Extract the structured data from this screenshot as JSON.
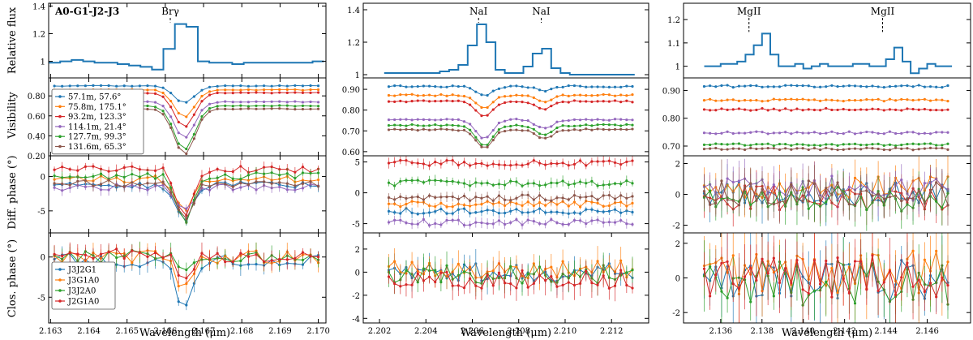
{
  "figure": {
    "ylabels": [
      "Relative flux",
      "Visibility",
      "Diff. phase (°)",
      "Clos. phase (°)"
    ],
    "xlabel": "Wavelength (μm)"
  },
  "colors": {
    "flux": "#1f77b4",
    "baselines": [
      "#1f77b4",
      "#ff7f0e",
      "#d62728",
      "#9467bd",
      "#2ca02c",
      "#8c564b"
    ],
    "triangles": [
      "#1f77b4",
      "#ff7f0e",
      "#2ca02c",
      "#d62728"
    ]
  },
  "chart_data": [
    {
      "type": "line",
      "panel": "flux",
      "column": 1,
      "title": "A0-G1-J2-J3",
      "ylim": [
        0.88,
        1.42
      ],
      "yticks": [
        1.0,
        1.2,
        1.4
      ],
      "xlim": [
        2.16295,
        2.1702
      ],
      "lines": [
        {
          "label": "Brγ",
          "x": 2.16613
        }
      ],
      "x": [
        2.1631,
        2.1634,
        2.1637,
        2.164,
        2.1643,
        2.1646,
        2.1649,
        2.1652,
        2.1655,
        2.1658,
        2.1661,
        2.1664,
        2.1667,
        2.167,
        2.1673,
        2.1676,
        2.1679,
        2.1682,
        2.1685,
        2.1688,
        2.1691,
        2.1694,
        2.1697,
        2.17
      ],
      "values": [
        0.99,
        1.0,
        1.01,
        1.0,
        0.99,
        0.99,
        0.98,
        0.97,
        0.96,
        0.94,
        1.09,
        1.27,
        1.25,
        1.0,
        0.99,
        0.99,
        0.98,
        0.99,
        0.99,
        0.99,
        0.99,
        0.99,
        0.99,
        1.0
      ]
    },
    {
      "type": "line",
      "panel": "flux",
      "column": 2,
      "ylim": [
        0.98,
        1.44
      ],
      "yticks": [
        1.0,
        1.2,
        1.4
      ],
      "xlim": [
        2.2013,
        2.2136
      ],
      "lines": [
        {
          "label": "NaI",
          "x": 2.20627
        },
        {
          "label": "NaI",
          "x": 2.20897
        }
      ],
      "x": [
        2.2024,
        2.2028,
        2.2032,
        2.2036,
        2.204,
        2.2044,
        2.2048,
        2.2052,
        2.2056,
        2.206,
        2.2064,
        2.2068,
        2.2072,
        2.2076,
        2.208,
        2.2084,
        2.2088,
        2.2092,
        2.2096,
        2.21,
        2.2104,
        2.2108,
        2.2112,
        2.2116,
        2.212,
        2.2124,
        2.2128
      ],
      "values": [
        1.01,
        1.01,
        1.01,
        1.01,
        1.01,
        1.01,
        1.02,
        1.03,
        1.06,
        1.18,
        1.31,
        1.2,
        1.03,
        1.01,
        1.01,
        1.05,
        1.13,
        1.16,
        1.04,
        1.01,
        1.0,
        1.0,
        1.0,
        1.0,
        1.0,
        1.0,
        1.0
      ]
    },
    {
      "type": "line",
      "panel": "flux",
      "column": 3,
      "ylim": [
        0.95,
        1.27
      ],
      "yticks": [
        1.0,
        1.1,
        1.2
      ],
      "xlim": [
        2.1342,
        2.1481
      ],
      "lines": [
        {
          "label": "MgII",
          "x": 2.13737
        },
        {
          "label": "MgII",
          "x": 2.14384
        }
      ],
      "x": [
        2.1354,
        2.1358,
        2.1362,
        2.1366,
        2.137,
        2.1374,
        2.1378,
        2.1382,
        2.1386,
        2.139,
        2.1394,
        2.1398,
        2.1402,
        2.1406,
        2.141,
        2.1414,
        2.1418,
        2.1422,
        2.1426,
        2.143,
        2.1434,
        2.1438,
        2.1442,
        2.1446,
        2.145,
        2.1454,
        2.1458,
        2.1462,
        2.1466,
        2.147
      ],
      "values": [
        1.0,
        1.0,
        1.01,
        1.01,
        1.02,
        1.05,
        1.09,
        1.14,
        1.05,
        1.0,
        1.0,
        1.01,
        0.99,
        1.0,
        1.01,
        1.0,
        1.0,
        1.0,
        1.01,
        1.01,
        1.0,
        1.0,
        1.03,
        1.08,
        1.02,
        0.97,
        0.99,
        1.01,
        1.0,
        1.0
      ]
    },
    {
      "type": "line",
      "panel": "visibility",
      "column": 1,
      "ylim": [
        0.2,
        0.98
      ],
      "yticks": [
        0.2,
        0.4,
        0.6,
        0.8
      ],
      "yticklabels": [
        "0.20",
        "0.40",
        "0.60",
        "0.80"
      ],
      "xlim": [
        2.16295,
        2.1702
      ],
      "legend": [
        "57.1m, 57.6°",
        "75.8m, 175.1°",
        "93.2m, 123.3°",
        "114.1m, 21.4°",
        "127.7m, 99.3°",
        "131.6m, 65.3°"
      ],
      "legend_location": "left",
      "series": [
        {
          "name": "57.1m, 57.6°",
          "x0": 2.1631,
          "x1": 2.17,
          "base": 0.9,
          "dip": 0.17,
          "center": 2.1665,
          "width": 0.00038
        },
        {
          "name": "75.8m, 175.1°",
          "x0": 2.1631,
          "x1": 2.17,
          "base": 0.86,
          "dip": 0.27,
          "center": 2.1665,
          "width": 0.00038
        },
        {
          "name": "93.2m, 123.3°",
          "x0": 2.1631,
          "x1": 2.17,
          "base": 0.83,
          "dip": 0.34,
          "center": 2.1665,
          "width": 0.00038
        },
        {
          "name": "114.1m, 21.4°",
          "x0": 2.1631,
          "x1": 2.17,
          "base": 0.74,
          "dip": 0.36,
          "center": 2.1665,
          "width": 0.00038
        },
        {
          "name": "127.7m, 99.3°",
          "x0": 2.1631,
          "x1": 2.17,
          "base": 0.7,
          "dip": 0.44,
          "center": 2.1665,
          "width": 0.00038
        },
        {
          "name": "131.6m, 65.3°",
          "x0": 2.1631,
          "x1": 2.17,
          "base": 0.67,
          "dip": 0.46,
          "center": 2.1665,
          "width": 0.00038
        }
      ]
    },
    {
      "type": "line",
      "panel": "visibility",
      "column": 2,
      "ylim": [
        0.58,
        0.955
      ],
      "yticks": [
        0.6,
        0.7,
        0.8,
        0.9
      ],
      "yticklabels": [
        "0.60",
        "0.70",
        "0.80",
        "0.90"
      ],
      "xlim": [
        2.2013,
        2.2136
      ],
      "series": [
        {
          "name": "57.1m, 57.6°",
          "x0": 2.2024,
          "x1": 2.2129,
          "base": 0.914,
          "dip": 0.045,
          "center": 2.2065,
          "width": 0.0005,
          "dip2": 0.02,
          "center2": 2.2091
        },
        {
          "name": "75.8m, 175.1°",
          "x0": 2.2024,
          "x1": 2.2129,
          "base": 0.872,
          "dip": 0.065,
          "center": 2.2065,
          "width": 0.0005,
          "dip2": 0.03,
          "center2": 2.2091
        },
        {
          "name": "93.2m, 123.3°",
          "x0": 2.2024,
          "x1": 2.2129,
          "base": 0.842,
          "dip": 0.075,
          "center": 2.2065,
          "width": 0.0005,
          "dip2": 0.035,
          "center2": 2.2091
        },
        {
          "name": "114.1m, 21.4°",
          "x0": 2.2024,
          "x1": 2.2129,
          "base": 0.754,
          "dip": 0.095,
          "center": 2.2065,
          "width": 0.0005,
          "dip2": 0.045,
          "center2": 2.2091
        },
        {
          "name": "127.7m, 99.3°",
          "x0": 2.2024,
          "x1": 2.2129,
          "base": 0.727,
          "dip": 0.1,
          "center": 2.2065,
          "width": 0.0005,
          "dip2": 0.05,
          "center2": 2.2091
        },
        {
          "name": "131.6m, 65.3°",
          "x0": 2.2024,
          "x1": 2.2129,
          "base": 0.706,
          "dip": 0.09,
          "center": 2.2065,
          "width": 0.0005,
          "dip2": 0.045,
          "center2": 2.2091
        }
      ]
    },
    {
      "type": "line",
      "panel": "visibility",
      "column": 3,
      "ylim": [
        0.665,
        0.945
      ],
      "yticks": [
        0.7,
        0.8,
        0.9
      ],
      "yticklabels": [
        "0.70",
        "0.80",
        "0.90"
      ],
      "xlim": [
        2.1342,
        2.1481
      ],
      "series": [
        {
          "name": "57.1m, 57.6°",
          "x0": 2.1352,
          "x1": 2.147,
          "base": 0.915,
          "dip": 0.0
        },
        {
          "name": "75.8m, 175.1°",
          "x0": 2.1352,
          "x1": 2.147,
          "base": 0.865,
          "dip": 0.0
        },
        {
          "name": "93.2m, 123.3°",
          "x0": 2.1352,
          "x1": 2.147,
          "base": 0.832,
          "dip": 0.0
        },
        {
          "name": "114.1m, 21.4°",
          "x0": 2.1352,
          "x1": 2.147,
          "base": 0.748,
          "dip": 0.0
        },
        {
          "name": "127.7m, 99.3°",
          "x0": 2.1352,
          "x1": 2.147,
          "base": 0.705,
          "dip": 0.0
        },
        {
          "name": "131.6m, 65.3°",
          "x0": 2.1352,
          "x1": 2.147,
          "base": 0.69,
          "dip": 0.0
        }
      ]
    },
    {
      "type": "line",
      "panel": "diffphase",
      "column": 1,
      "ylim": [
        -8.2,
        3.0
      ],
      "yticks": [
        -5,
        0
      ],
      "xlim": [
        2.16295,
        2.1702
      ],
      "series": [
        {
          "name": "57.1m, 57.6°",
          "x0": 2.1631,
          "x1": 2.17,
          "base": -1.2,
          "dip": 5.2,
          "center": 2.1665,
          "width": 0.0003
        },
        {
          "name": "75.8m, 175.1°",
          "x0": 2.1631,
          "x1": 2.17,
          "base": -0.4,
          "dip": 4.6,
          "center": 2.1665,
          "width": 0.0003
        },
        {
          "name": "93.2m, 123.3°",
          "x0": 2.1631,
          "x1": 2.17,
          "base": 1.0,
          "dip": 7.0,
          "center": 2.1665,
          "width": 0.0003
        },
        {
          "name": "114.1m, 21.4°",
          "x0": 2.1631,
          "x1": 2.17,
          "base": -1.6,
          "dip": 3.5,
          "center": 2.1665,
          "width": 0.0003
        },
        {
          "name": "127.7m, 99.3°",
          "x0": 2.1631,
          "x1": 2.17,
          "base": 0.1,
          "dip": 6.5,
          "center": 2.1665,
          "width": 0.0003
        },
        {
          "name": "131.6m, 65.3°",
          "x0": 2.1631,
          "x1": 2.17,
          "base": -1.0,
          "dip": 5.0,
          "center": 2.1665,
          "width": 0.0003
        }
      ]
    },
    {
      "type": "line",
      "panel": "diffphase",
      "column": 2,
      "ylim": [
        -6.5,
        6.0
      ],
      "yticks": [
        -5,
        0,
        5
      ],
      "xlim": [
        2.2013,
        2.2136
      ],
      "series": [
        {
          "name": "57.1m, 57.6°",
          "x0": 2.2024,
          "x1": 2.2129,
          "base": -3.0,
          "dip": 0.0
        },
        {
          "name": "75.8m, 175.1°",
          "x0": 2.2024,
          "x1": 2.2129,
          "base": -1.8,
          "dip": 0.0
        },
        {
          "name": "93.2m, 123.3°",
          "x0": 2.2024,
          "x1": 2.2129,
          "base": 4.8,
          "dip": 0.0
        },
        {
          "name": "114.1m, 21.4°",
          "x0": 2.2024,
          "x1": 2.2129,
          "base": -4.8,
          "dip": 0.0
        },
        {
          "name": "127.7m, 99.3°",
          "x0": 2.2024,
          "x1": 2.2129,
          "base": 1.6,
          "dip": 0.0
        },
        {
          "name": "131.6m, 65.3°",
          "x0": 2.2024,
          "x1": 2.2129,
          "base": -0.8,
          "dip": 0.0
        }
      ]
    },
    {
      "type": "line",
      "panel": "diffphase",
      "column": 3,
      "ylim": [
        -2.5,
        2.5
      ],
      "yticks": [
        -2,
        0,
        2
      ],
      "xlim": [
        2.1342,
        2.1481
      ],
      "series": [
        {
          "name": "57.1m, 57.6°",
          "x0": 2.1352,
          "x1": 2.147,
          "base": 0.0,
          "dip": 0.0
        },
        {
          "name": "75.8m, 175.1°",
          "x0": 2.1352,
          "x1": 2.147,
          "base": 0.5,
          "dip": 0.0
        },
        {
          "name": "93.2m, 123.3°",
          "x0": 2.1352,
          "x1": 2.147,
          "base": -0.2,
          "dip": 0.0
        },
        {
          "name": "114.1m, 21.4°",
          "x0": 2.1352,
          "x1": 2.147,
          "base": 0.4,
          "dip": 0.0
        },
        {
          "name": "127.7m, 99.3°",
          "x0": 2.1352,
          "x1": 2.147,
          "base": -0.3,
          "dip": 0.0
        },
        {
          "name": "131.6m, 65.3°",
          "x0": 2.1352,
          "x1": 2.147,
          "base": 0.1,
          "dip": 0.0
        }
      ]
    },
    {
      "type": "line",
      "panel": "closure",
      "column": 1,
      "ylim": [
        -8.2,
        3.0
      ],
      "yticks": [
        -5,
        0
      ],
      "xlim": [
        2.16295,
        2.1702
      ],
      "legend": [
        "J3J2G1",
        "J3G1A0",
        "J3J2A0",
        "J2G1A0"
      ],
      "legend_location": "lower-left",
      "series": [
        {
          "name": "J3J2G1",
          "x0": 2.1631,
          "x1": 2.17,
          "base": -0.4,
          "dip": 6.0,
          "center": 2.1665,
          "width": 0.0003
        },
        {
          "name": "J3G1A0",
          "x0": 2.1631,
          "x1": 2.17,
          "base": 0.0,
          "dip": 4.0,
          "center": 2.1665,
          "width": 0.0003
        },
        {
          "name": "J3J2A0",
          "x0": 2.1631,
          "x1": 2.17,
          "base": 0.1,
          "dip": 1.0,
          "center": 2.1665,
          "width": 0.0003
        },
        {
          "name": "J2G1A0",
          "x0": 2.1631,
          "x1": 2.17,
          "base": 0.2,
          "dip": 2.5,
          "center": 2.1665,
          "width": 0.0003
        }
      ]
    },
    {
      "type": "line",
      "panel": "closure",
      "column": 2,
      "xlabel": "Wavelength (μm)",
      "ylim": [
        -4.4,
        3.4
      ],
      "yticks": [
        -4,
        -2,
        0,
        2
      ],
      "xlim": [
        2.2013,
        2.2136
      ],
      "xticks": [
        2.202,
        2.204,
        2.206,
        2.208,
        2.21,
        2.212
      ],
      "xticklabels": [
        "2.202",
        "2.204",
        "2.206",
        "2.208",
        "2.210",
        "2.212"
      ],
      "series": [
        {
          "name": "J3J2G1",
          "x0": 2.2024,
          "x1": 2.2129,
          "base": 0.0,
          "dip": 0.0
        },
        {
          "name": "J3G1A0",
          "x0": 2.2024,
          "x1": 2.2129,
          "base": 0.3,
          "dip": 0.0
        },
        {
          "name": "J3J2A0",
          "x0": 2.2024,
          "x1": 2.2129,
          "base": -0.2,
          "dip": 0.0
        },
        {
          "name": "J2G1A0",
          "x0": 2.2024,
          "x1": 2.2129,
          "base": -0.6,
          "dip": 0.0
        }
      ]
    },
    {
      "type": "line",
      "panel": "closure",
      "column": 3,
      "ylim": [
        -2.6,
        2.6
      ],
      "yticks": [
        -2,
        0,
        2
      ],
      "xlim": [
        2.1342,
        2.1481
      ],
      "xticks": [
        2.136,
        2.138,
        2.14,
        2.142,
        2.144,
        2.146
      ],
      "xticklabels": [
        "2.136",
        "2.138",
        "2.140",
        "2.142",
        "2.144",
        "2.146"
      ],
      "series": [
        {
          "name": "J3J2G1",
          "x0": 2.1352,
          "x1": 2.147,
          "base": -0.2,
          "dip": 0.0
        },
        {
          "name": "J3G1A0",
          "x0": 2.1352,
          "x1": 2.147,
          "base": 0.3,
          "dip": 0.0
        },
        {
          "name": "J3J2A0",
          "x0": 2.1352,
          "x1": 2.147,
          "base": -0.3,
          "dip": 0.0
        },
        {
          "name": "J2G1A0",
          "x0": 2.1352,
          "x1": 2.147,
          "base": 0.1,
          "dip": 0.0
        }
      ]
    }
  ],
  "xaxis_col1": {
    "ticks": [
      2.163,
      2.164,
      2.165,
      2.166,
      2.167,
      2.168,
      2.169,
      2.17
    ],
    "ticklabels": [
      "2.163",
      "2.164",
      "2.165",
      "2.166",
      "2.167",
      "2.168",
      "2.169",
      "2.170"
    ]
  }
}
